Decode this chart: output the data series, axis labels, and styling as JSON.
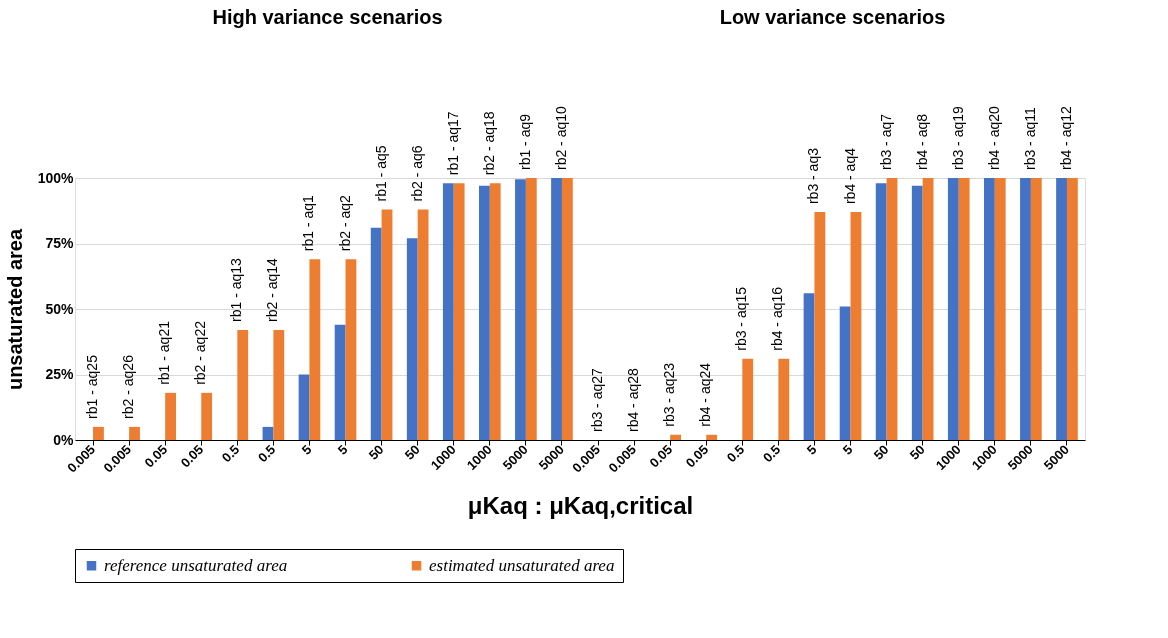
{
  "chart_data": {
    "type": "bar",
    "xlabel": "μKaq : μKaq,critical",
    "ylabel": "unsaturated area",
    "categories": [
      "0.005",
      "0.005",
      "0.05",
      "0.05",
      "0.5",
      "0.5",
      "5",
      "5",
      "50",
      "50",
      "1000",
      "1000",
      "5000",
      "5000",
      "0.005",
      "0.005",
      "0.05",
      "0.05",
      "0.5",
      "0.5",
      "5",
      "5",
      "50",
      "50",
      "1000",
      "1000",
      "5000",
      "5000"
    ],
    "series": [
      {
        "name": "reference unsaturated area",
        "color": "#4472c4",
        "values": [
          0,
          0,
          0,
          0,
          0,
          5,
          25,
          44,
          81,
          77,
          98,
          97,
          99.5,
          100,
          0,
          0,
          0,
          0,
          0,
          0,
          56,
          51,
          98,
          97,
          100,
          100,
          100,
          100
        ]
      },
      {
        "name": "estimated unsaturated area",
        "color": "#ed7d31",
        "values": [
          5,
          5,
          18,
          18,
          42,
          42,
          69,
          69,
          88,
          88,
          98,
          98,
          100,
          100,
          0,
          0,
          2,
          2,
          31,
          31,
          87,
          87,
          100,
          100,
          100,
          100,
          100,
          100
        ]
      }
    ],
    "ylim": [
      0,
      100
    ],
    "yticks": [
      {
        "value": 0,
        "label": "0%"
      },
      {
        "value": 25,
        "label": "25%"
      },
      {
        "value": 50,
        "label": "50%"
      },
      {
        "value": 75,
        "label": "75%"
      },
      {
        "value": 100,
        "label": "100%"
      }
    ],
    "grid": "y",
    "legend": "bottom",
    "annotations": [
      "High variance scenarios",
      "Low variance scenarios",
      "rb1 - aq25",
      "rb2 - aq26",
      "rb1 - aq21",
      "rb2 - aq22",
      "rb1 - aq13",
      "rb2 - aq14",
      "rb1 - aq1",
      "rb2 - aq2",
      "rb1 - aq5",
      "rb2 - aq6",
      "rb1 - aq17",
      "rb2 - aq18",
      "rb1 - aq9",
      "rb2 - aq10",
      "rb3 - aq27",
      "rb4 - aq28",
      "rb3 - aq23",
      "rb4 - aq24",
      "rb3 - aq15",
      "rb4 - aq16",
      "rb3 - aq3",
      "rb4 - aq4",
      "rb3 - aq7",
      "rb4 - aq8",
      "rb3 - aq19",
      "rb4 - aq20",
      "rb3 - aq11",
      "rb4 - aq12"
    ]
  }
}
